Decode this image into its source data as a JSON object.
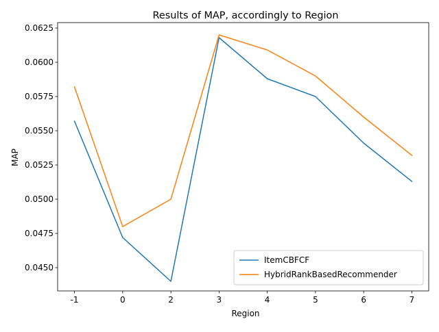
{
  "chart_data": {
    "type": "line",
    "title": "Results of MAP, accordingly to Region",
    "xlabel": "Region",
    "ylabel": "MAP",
    "categories": [
      "-1",
      "0",
      "2",
      "3",
      "4",
      "5",
      "6",
      "7"
    ],
    "ylim": [
      0.0433,
      0.0629
    ],
    "yticks": [
      "0.0450",
      "0.0475",
      "0.0500",
      "0.0525",
      "0.0550",
      "0.0575",
      "0.0600",
      "0.0625"
    ],
    "ytick_values": [
      0.045,
      0.0475,
      0.05,
      0.0525,
      0.055,
      0.0575,
      0.06,
      0.0625
    ],
    "grid": false,
    "legend_position": "lower right",
    "series": [
      {
        "name": "ItemCBFCF",
        "color": "#1f77b4",
        "values": [
          0.0557,
          0.0472,
          0.044,
          0.0618,
          0.0588,
          0.0575,
          0.0541,
          0.0513
        ]
      },
      {
        "name": "HybridRankBasedRecommender",
        "color": "#ff7f0e",
        "values": [
          0.0582,
          0.048,
          0.05,
          0.062,
          0.0609,
          0.059,
          0.056,
          0.0532
        ]
      }
    ]
  }
}
